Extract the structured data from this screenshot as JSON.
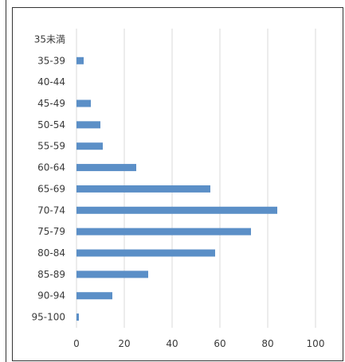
{
  "chart_data": {
    "type": "bar",
    "orientation": "horizontal",
    "categories": [
      "35未満",
      "35-39",
      "40-44",
      "45-49",
      "50-54",
      "55-59",
      "60-64",
      "65-69",
      "70-74",
      "75-79",
      "80-84",
      "85-89",
      "90-94",
      "95-100"
    ],
    "values": [
      0,
      3,
      0,
      6,
      10,
      11,
      25,
      56,
      84,
      73,
      58,
      30,
      15,
      1
    ],
    "xlim": [
      0,
      100
    ],
    "x_ticks": [
      0,
      20,
      40,
      60,
      80,
      100
    ],
    "grid": "vertical",
    "legend": "none",
    "bar_color": "#5b8fc7",
    "grid_color": "#d9d9d9"
  }
}
